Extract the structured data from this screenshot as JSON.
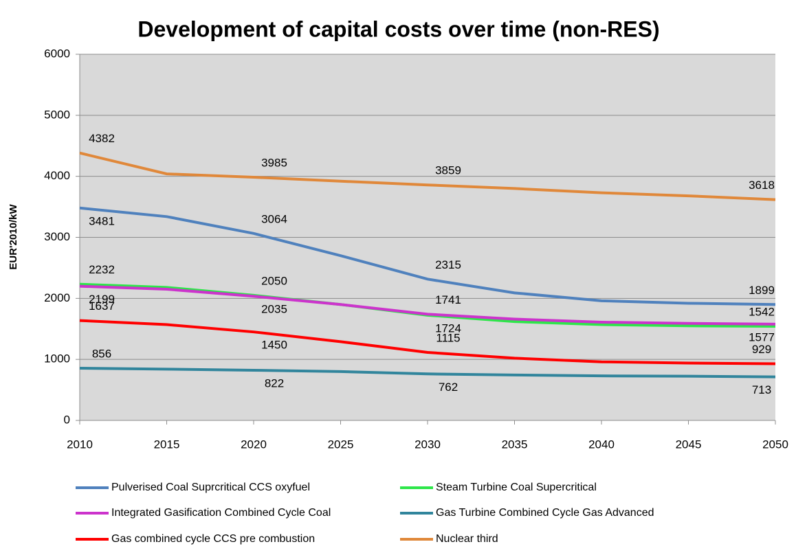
{
  "chart_data": {
    "type": "line",
    "title": "Development of capital costs over time (non-RES)",
    "y_label": "EUR'2010/kW",
    "x": [
      2010,
      2015,
      2020,
      2025,
      2030,
      2035,
      2040,
      2045,
      2050
    ],
    "xlim": [
      2010,
      2050
    ],
    "xticks": [
      2010,
      2015,
      2020,
      2025,
      2030,
      2035,
      2040,
      2045,
      2050
    ],
    "ylim": [
      0,
      6000
    ],
    "yticks": [
      0,
      1000,
      2000,
      3000,
      4000,
      5000,
      6000
    ],
    "grid": true,
    "legend": "bottom",
    "series": [
      {
        "name": "Pulverised Coal Suprcritical CCS oxyfuel",
        "color": "#4f81bd",
        "values": [
          3481,
          3340,
          3064,
          2700,
          2315,
          2090,
          1960,
          1920,
          1899
        ],
        "value_labels": [
          "3481",
          null,
          "3064",
          null,
          "2315",
          null,
          null,
          null,
          "1899"
        ]
      },
      {
        "name": "Steam Turbine Coal Supercritical",
        "color": "#2ee64a",
        "values": [
          2232,
          2180,
          2050,
          1900,
          1724,
          1620,
          1570,
          1550,
          1542
        ],
        "value_labels": [
          "2232",
          null,
          "2050",
          null,
          "1724",
          null,
          null,
          null,
          "1542"
        ]
      },
      {
        "name": "Integrated Gasification  Combined Cycle Coal",
        "color": "#cc33cc",
        "values": [
          2199,
          2150,
          2035,
          1900,
          1741,
          1660,
          1610,
          1590,
          1577
        ],
        "value_labels": [
          "2199",
          null,
          "2035",
          null,
          "1741",
          null,
          null,
          null,
          "1577"
        ]
      },
      {
        "name": "Gas Turbine Combined Cycle Gas Advanced",
        "color": "#31859c",
        "values": [
          856,
          840,
          822,
          800,
          762,
          745,
          730,
          725,
          713
        ],
        "value_labels": [
          "856",
          null,
          "822",
          null,
          "762",
          null,
          null,
          null,
          "713"
        ]
      },
      {
        "name": "Gas combined cycle CCS pre combustion",
        "color": "#ff0000",
        "values": [
          1637,
          1570,
          1450,
          1290,
          1115,
          1020,
          960,
          940,
          929
        ],
        "value_labels": [
          "1637",
          null,
          "1450",
          null,
          "1115",
          null,
          null,
          null,
          "929"
        ]
      },
      {
        "name": "Nuclear third",
        "color": "#e0883a",
        "values": [
          4382,
          4040,
          3985,
          3920,
          3859,
          3800,
          3730,
          3680,
          3618
        ],
        "value_labels": [
          "4382",
          null,
          "3985",
          null,
          "3859",
          null,
          null,
          null,
          "3618"
        ]
      }
    ]
  }
}
